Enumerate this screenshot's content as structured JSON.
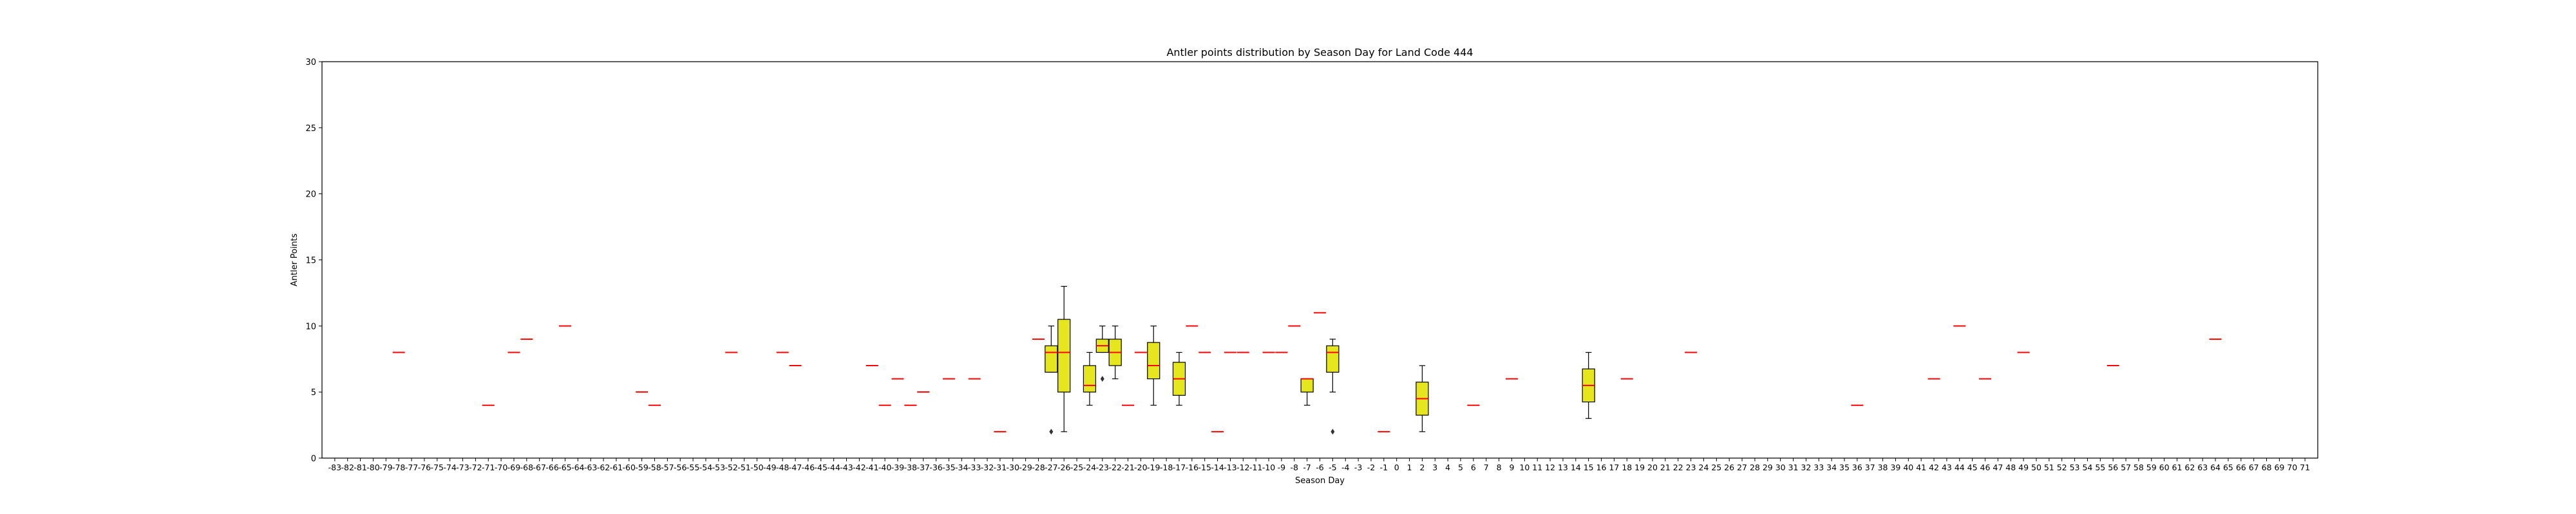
{
  "chart_data": {
    "type": "box",
    "title": "Antler points distribution by Season Day for Land Code 444",
    "xlabel": "Season Day",
    "ylabel": "Antler Points",
    "ylim": [
      0,
      30
    ],
    "yticks": [
      0,
      5,
      10,
      15,
      20,
      25,
      30
    ],
    "grid": false,
    "colors": {
      "box_fill": "#e6e61e",
      "median": "#ff0000",
      "outline": "#000000"
    },
    "categories": [
      "-83",
      "-82",
      "-81",
      "-80",
      "-79",
      "-78",
      "-77",
      "-76",
      "-75",
      "-74",
      "-73",
      "-72",
      "-71",
      "-70",
      "-69",
      "-68",
      "-67",
      "-66",
      "-65",
      "-64",
      "-63",
      "-62",
      "-61",
      "-60",
      "-59",
      "-58",
      "-57",
      "-56",
      "-55",
      "-54",
      "-53",
      "-52",
      "-51",
      "-50",
      "-49",
      "-48",
      "-47",
      "-46",
      "-45",
      "-44",
      "-43",
      "-42",
      "-41",
      "-40",
      "-39",
      "-38",
      "-37",
      "-36",
      "-35",
      "-34",
      "-33",
      "-32",
      "-31",
      "-30",
      "-29",
      "-28",
      "-27",
      "-26",
      "-25",
      "-24",
      "-23",
      "-22",
      "-21",
      "-20",
      "-19",
      "-18",
      "-17",
      "-16",
      "-15",
      "-14",
      "-13",
      "-12",
      "-11",
      "-10",
      "-9",
      "-8",
      "-7",
      "-6",
      "-5",
      "-4",
      "-3",
      "-2",
      "-1",
      "0",
      "1",
      "2",
      "3",
      "4",
      "5",
      "6",
      "7",
      "8",
      "9",
      "10",
      "11",
      "12",
      "13",
      "14",
      "15",
      "16",
      "17",
      "18",
      "19",
      "20",
      "21",
      "22",
      "23",
      "24",
      "25",
      "26",
      "27",
      "28",
      "29",
      "30",
      "31",
      "32",
      "33",
      "34",
      "35",
      "36",
      "37",
      "38",
      "39",
      "40",
      "41",
      "42",
      "43",
      "44",
      "45",
      "46",
      "47",
      "48",
      "49",
      "50",
      "51",
      "52",
      "53",
      "54",
      "55",
      "56",
      "57",
      "58",
      "59",
      "60",
      "61",
      "62",
      "63",
      "64",
      "65",
      "66",
      "67",
      "68",
      "69",
      "70",
      "71"
    ],
    "boxes": [
      {
        "day": "-78",
        "q1": 8,
        "median": 8,
        "q3": 8,
        "whisker_low": 8,
        "whisker_high": 8
      },
      {
        "day": "-71",
        "q1": 4,
        "median": 4,
        "q3": 4,
        "whisker_low": 4,
        "whisker_high": 4
      },
      {
        "day": "-69",
        "q1": 8,
        "median": 8,
        "q3": 8,
        "whisker_low": 8,
        "whisker_high": 8
      },
      {
        "day": "-68",
        "q1": 9,
        "median": 9,
        "q3": 9,
        "whisker_low": 9,
        "whisker_high": 9
      },
      {
        "day": "-65",
        "q1": 10,
        "median": 10,
        "q3": 10,
        "whisker_low": 10,
        "whisker_high": 10
      },
      {
        "day": "-59",
        "q1": 5,
        "median": 5,
        "q3": 5,
        "whisker_low": 5,
        "whisker_high": 5
      },
      {
        "day": "-58",
        "q1": 4,
        "median": 4,
        "q3": 4,
        "whisker_low": 4,
        "whisker_high": 4
      },
      {
        "day": "-52",
        "q1": 8,
        "median": 8,
        "q3": 8,
        "whisker_low": 8,
        "whisker_high": 8
      },
      {
        "day": "-48",
        "q1": 8,
        "median": 8,
        "q3": 8,
        "whisker_low": 8,
        "whisker_high": 8
      },
      {
        "day": "-47",
        "q1": 7,
        "median": 7,
        "q3": 7,
        "whisker_low": 7,
        "whisker_high": 7
      },
      {
        "day": "-41",
        "q1": 7,
        "median": 7,
        "q3": 7,
        "whisker_low": 7,
        "whisker_high": 7
      },
      {
        "day": "-40",
        "q1": 4,
        "median": 4,
        "q3": 4,
        "whisker_low": 4,
        "whisker_high": 4
      },
      {
        "day": "-39",
        "q1": 6,
        "median": 6,
        "q3": 6,
        "whisker_low": 6,
        "whisker_high": 6
      },
      {
        "day": "-38",
        "q1": 4,
        "median": 4,
        "q3": 4,
        "whisker_low": 4,
        "whisker_high": 4
      },
      {
        "day": "-37",
        "q1": 5,
        "median": 5,
        "q3": 5,
        "whisker_low": 5,
        "whisker_high": 5
      },
      {
        "day": "-35",
        "q1": 6,
        "median": 6,
        "q3": 6,
        "whisker_low": 6,
        "whisker_high": 6
      },
      {
        "day": "-33",
        "q1": 6,
        "median": 6,
        "q3": 6,
        "whisker_low": 6,
        "whisker_high": 6
      },
      {
        "day": "-31",
        "q1": 2,
        "median": 2,
        "q3": 2,
        "whisker_low": 2,
        "whisker_high": 2
      },
      {
        "day": "-28",
        "q1": 9,
        "median": 9,
        "q3": 9,
        "whisker_low": 9,
        "whisker_high": 9
      },
      {
        "day": "-27",
        "q1": 6.5,
        "median": 8,
        "q3": 8.5,
        "whisker_low": 6.5,
        "whisker_high": 10,
        "outliers": [
          2
        ]
      },
      {
        "day": "-26",
        "q1": 5,
        "median": 8,
        "q3": 10.5,
        "whisker_low": 2,
        "whisker_high": 13
      },
      {
        "day": "-24",
        "q1": 5,
        "median": 5.5,
        "q3": 7,
        "whisker_low": 4,
        "whisker_high": 8
      },
      {
        "day": "-23",
        "q1": 8,
        "median": 8.5,
        "q3": 9,
        "whisker_low": 8,
        "whisker_high": 10,
        "outliers": [
          6
        ]
      },
      {
        "day": "-22",
        "q1": 7,
        "median": 8,
        "q3": 9,
        "whisker_low": 6,
        "whisker_high": 10
      },
      {
        "day": "-21",
        "q1": 4,
        "median": 4,
        "q3": 4,
        "whisker_low": 4,
        "whisker_high": 4
      },
      {
        "day": "-20",
        "q1": 8,
        "median": 8,
        "q3": 8,
        "whisker_low": 8,
        "whisker_high": 8
      },
      {
        "day": "-19",
        "q1": 6,
        "median": 7,
        "q3": 8.75,
        "whisker_low": 4,
        "whisker_high": 10
      },
      {
        "day": "-17",
        "q1": 4.75,
        "median": 6,
        "q3": 7.25,
        "whisker_low": 4,
        "whisker_high": 8
      },
      {
        "day": "-16",
        "q1": 10,
        "median": 10,
        "q3": 10,
        "whisker_low": 10,
        "whisker_high": 10
      },
      {
        "day": "-15",
        "q1": 8,
        "median": 8,
        "q3": 8,
        "whisker_low": 8,
        "whisker_high": 8
      },
      {
        "day": "-14",
        "q1": 2,
        "median": 2,
        "q3": 2,
        "whisker_low": 2,
        "whisker_high": 2
      },
      {
        "day": "-13",
        "q1": 8,
        "median": 8,
        "q3": 8,
        "whisker_low": 8,
        "whisker_high": 8
      },
      {
        "day": "-12",
        "q1": 8,
        "median": 8,
        "q3": 8,
        "whisker_low": 8,
        "whisker_high": 8
      },
      {
        "day": "-10",
        "q1": 8,
        "median": 8,
        "q3": 8,
        "whisker_low": 8,
        "whisker_high": 8
      },
      {
        "day": "-9",
        "q1": 8,
        "median": 8,
        "q3": 8,
        "whisker_low": 8,
        "whisker_high": 8
      },
      {
        "day": "-8",
        "q1": 10,
        "median": 10,
        "q3": 10,
        "whisker_low": 10,
        "whisker_high": 10
      },
      {
        "day": "-7",
        "q1": 5,
        "median": 6,
        "q3": 6,
        "whisker_low": 4,
        "whisker_high": 6
      },
      {
        "day": "-6",
        "q1": 11,
        "median": 11,
        "q3": 11,
        "whisker_low": 11,
        "whisker_high": 11
      },
      {
        "day": "-5",
        "q1": 6.5,
        "median": 8,
        "q3": 8.5,
        "whisker_low": 5,
        "whisker_high": 9,
        "outliers": [
          2
        ]
      },
      {
        "day": "-1",
        "q1": 2,
        "median": 2,
        "q3": 2,
        "whisker_low": 2,
        "whisker_high": 2
      },
      {
        "day": "2",
        "q1": 3.25,
        "median": 4.5,
        "q3": 5.75,
        "whisker_low": 2,
        "whisker_high": 7
      },
      {
        "day": "6",
        "q1": 4,
        "median": 4,
        "q3": 4,
        "whisker_low": 4,
        "whisker_high": 4
      },
      {
        "day": "9",
        "q1": 6,
        "median": 6,
        "q3": 6,
        "whisker_low": 6,
        "whisker_high": 6
      },
      {
        "day": "15",
        "q1": 4.25,
        "median": 5.5,
        "q3": 6.75,
        "whisker_low": 3,
        "whisker_high": 8
      },
      {
        "day": "18",
        "q1": 6,
        "median": 6,
        "q3": 6,
        "whisker_low": 6,
        "whisker_high": 6
      },
      {
        "day": "23",
        "q1": 8,
        "median": 8,
        "q3": 8,
        "whisker_low": 8,
        "whisker_high": 8
      },
      {
        "day": "36",
        "q1": 4,
        "median": 4,
        "q3": 4,
        "whisker_low": 4,
        "whisker_high": 4
      },
      {
        "day": "42",
        "q1": 6,
        "median": 6,
        "q3": 6,
        "whisker_low": 6,
        "whisker_high": 6
      },
      {
        "day": "44",
        "q1": 10,
        "median": 10,
        "q3": 10,
        "whisker_low": 10,
        "whisker_high": 10
      },
      {
        "day": "46",
        "q1": 6,
        "median": 6,
        "q3": 6,
        "whisker_low": 6,
        "whisker_high": 6
      },
      {
        "day": "49",
        "q1": 8,
        "median": 8,
        "q3": 8,
        "whisker_low": 8,
        "whisker_high": 8
      },
      {
        "day": "56",
        "q1": 7,
        "median": 7,
        "q3": 7,
        "whisker_low": 7,
        "whisker_high": 7
      },
      {
        "day": "64",
        "q1": 9,
        "median": 9,
        "q3": 9,
        "whisker_low": 9,
        "whisker_high": 9
      }
    ]
  }
}
